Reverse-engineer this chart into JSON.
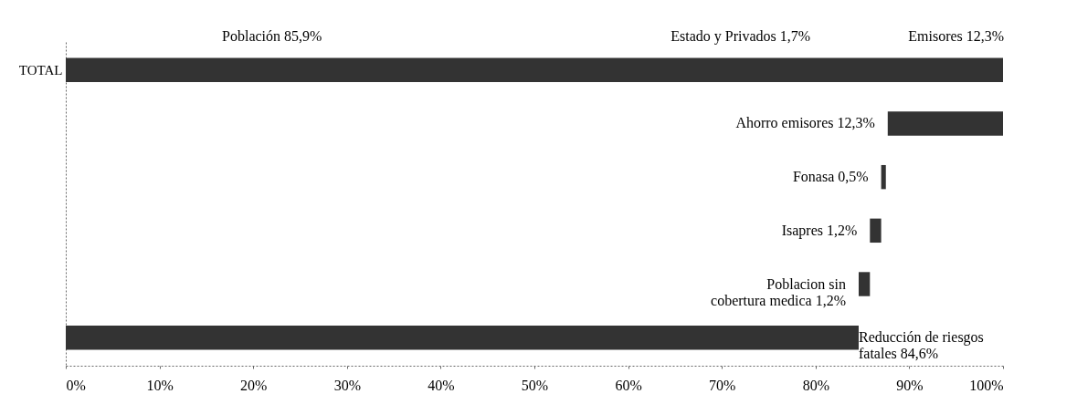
{
  "chart_data": {
    "type": "bar",
    "orientation": "horizontal",
    "categories": [
      "TOTAL",
      null,
      null,
      null,
      null,
      null
    ],
    "values": [
      100,
      12.3,
      0.5,
      1.2,
      1.2,
      84.6
    ],
    "base": [
      0,
      87.7,
      87.0,
      85.8,
      84.6,
      0
    ],
    "color": "#333333",
    "value_labels": [
      null,
      "Ahorro emisores 12,3%",
      "Fonasa 0,5%",
      "Isapres 1,2%",
      "Poblacion sin cobertura medica 1,2%",
      "Reducción de riesgos fatales 84,6%"
    ],
    "annotations": [
      "Población 85,9%",
      "Estado y Privados 1,7%",
      "Emisores 12,3%"
    ],
    "xlim": [
      0,
      100
    ],
    "xticks": [
      {
        "value": 0,
        "label": "0%"
      },
      {
        "value": 10,
        "label": "10%"
      },
      {
        "value": 20,
        "label": "20%"
      },
      {
        "value": 30,
        "label": "30%"
      },
      {
        "value": 40,
        "label": "40%"
      },
      {
        "value": 50,
        "label": "50%"
      },
      {
        "value": 60,
        "label": "60%"
      },
      {
        "value": 70,
        "label": "70%"
      },
      {
        "value": 80,
        "label": "80%"
      },
      {
        "value": 90,
        "label": "90%"
      },
      {
        "value": 100,
        "label": "100%"
      }
    ],
    "grid": false
  }
}
